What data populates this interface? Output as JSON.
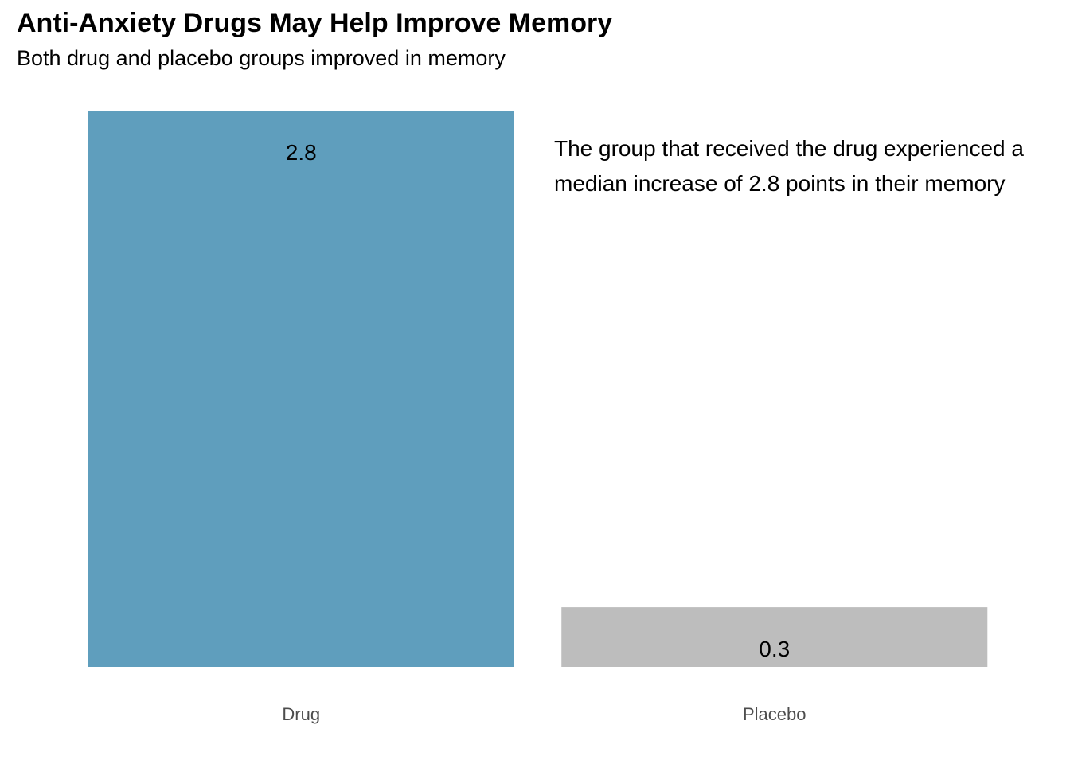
{
  "chart_data": {
    "type": "bar",
    "title": "Anti-Anxiety Drugs May Help Improve Memory",
    "subtitle": "Both drug and placebo groups improved in memory",
    "categories": [
      "Drug",
      "Placebo"
    ],
    "values": [
      2.8,
      0.3
    ],
    "value_labels": [
      "2.8",
      "0.3"
    ],
    "bar_colors": [
      "#5f9ebd",
      "#bdbdbd"
    ],
    "ylim": [
      0,
      2.8
    ],
    "grid": false,
    "annotation": {
      "line1": "The group that received the drug experienced a",
      "line2": "median increase of 2.8 points in their memory"
    }
  }
}
